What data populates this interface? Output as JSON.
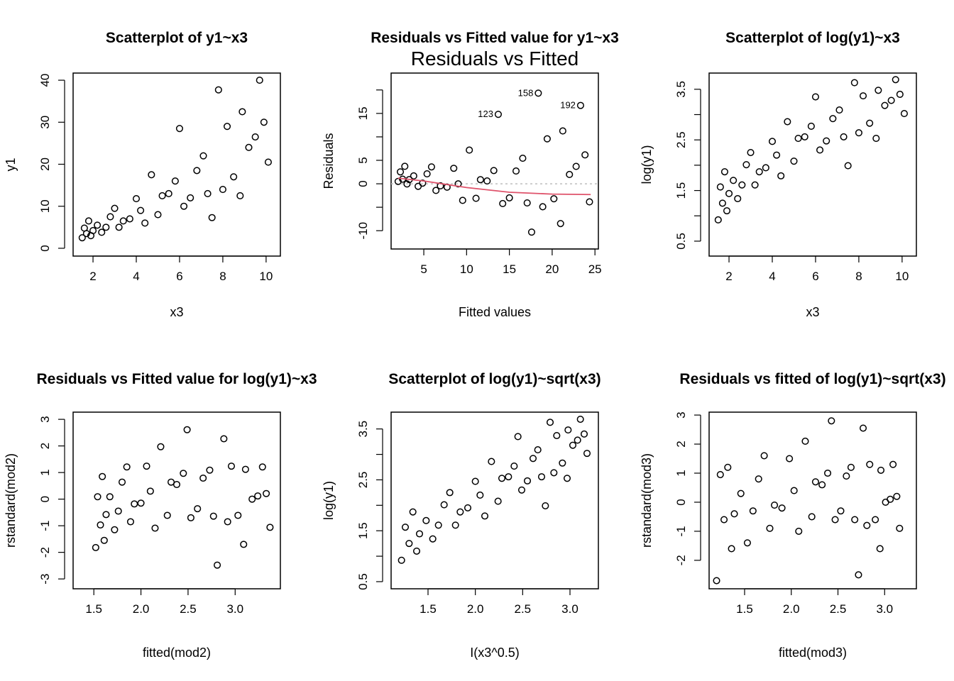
{
  "chart_data": [
    {
      "type": "scatter",
      "title": "Scatterplot of y1~x3",
      "xlabel": "x3",
      "ylabel": "y1",
      "xlim": [
        1.08,
        10.66
      ],
      "ylim": [
        -1.86,
        41.7
      ],
      "xticks": [
        2,
        4,
        6,
        8,
        10
      ],
      "xtick_labels": [
        "2",
        "4",
        "6",
        "8",
        "10"
      ],
      "yticks": [
        0,
        10,
        20,
        30,
        40
      ],
      "ytick_labels": [
        "0",
        "10",
        "20",
        "30",
        "40"
      ],
      "x": [
        1.5,
        1.6,
        1.7,
        1.8,
        1.9,
        2.0,
        2.2,
        2.4,
        2.6,
        2.8,
        3.0,
        3.2,
        3.4,
        3.7,
        4.0,
        4.2,
        4.4,
        4.7,
        5.0,
        5.2,
        5.5,
        5.8,
        6.0,
        6.2,
        6.5,
        6.8,
        7.1,
        7.3,
        7.5,
        7.8,
        8.0,
        8.2,
        8.5,
        8.8,
        8.9,
        9.2,
        9.5,
        9.7,
        9.9,
        10.1
      ],
      "y": [
        2.5,
        4.8,
        3.5,
        6.5,
        3.0,
        4.2,
        5.5,
        3.8,
        5.0,
        7.5,
        9.5,
        5.0,
        6.5,
        7.0,
        11.8,
        9.0,
        6.0,
        17.5,
        8.0,
        12.5,
        13.0,
        16.0,
        28.5,
        10.0,
        12.0,
        18.5,
        22.0,
        13.0,
        7.3,
        37.7,
        14.0,
        29.0,
        17.0,
        12.5,
        32.5,
        24.0,
        26.5,
        40.0,
        30.0,
        20.5
      ],
      "grid": false
    },
    {
      "type": "scatter",
      "title": "Residuals vs Fitted value for y1~x3",
      "subtitle": "Residuals vs Fitted",
      "xlabel": "Fitted values",
      "ylabel": "Residuals",
      "xlim": [
        1.18,
        25.4
      ],
      "ylim": [
        -13.9,
        23.6
      ],
      "xticks": [
        5,
        10,
        15,
        20,
        25
      ],
      "xtick_labels": [
        "5",
        "10",
        "15",
        "20",
        "25"
      ],
      "yticks": [
        -10,
        -5,
        0,
        5,
        10,
        15,
        20
      ],
      "ytick_labels": [
        "-10",
        "",
        "0",
        "5",
        "",
        "15",
        ""
      ],
      "x": [
        2.0,
        2.26,
        2.52,
        2.78,
        3.04,
        3.3,
        3.82,
        4.34,
        4.86,
        5.38,
        5.9,
        6.42,
        6.94,
        7.72,
        8.5,
        9.02,
        9.54,
        10.32,
        11.1,
        11.62,
        12.4,
        13.18,
        13.7,
        14.22,
        15.0,
        15.78,
        16.56,
        17.08,
        17.6,
        18.38,
        18.9,
        19.42,
        20.2,
        20.98,
        21.24,
        22.02,
        22.8,
        23.32,
        23.84,
        24.36
      ],
      "y": [
        0.5,
        2.54,
        0.98,
        3.72,
        -0.04,
        0.9,
        1.68,
        -0.54,
        0.14,
        2.12,
        3.6,
        -1.42,
        -0.44,
        -0.72,
        3.3,
        -0.02,
        -3.54,
        7.18,
        -3.1,
        0.88,
        0.6,
        2.82,
        14.8,
        -4.22,
        -3.0,
        2.72,
        5.44,
        -4.08,
        -10.3,
        19.32,
        -4.9,
        9.58,
        -3.2,
        -8.48,
        11.26,
        1.98,
        3.7,
        16.7,
        6.16,
        -3.86
      ],
      "point_labels": [
        {
          "index": 22,
          "text": "123"
        },
        {
          "index": 29,
          "text": "158"
        },
        {
          "index": 37,
          "text": "192"
        }
      ],
      "reference_line": {
        "y": 0,
        "color": "#bebebe",
        "style": "dashed"
      },
      "smooth_line": {
        "color": "#df536b",
        "x": [
          2,
          5,
          10,
          15,
          20,
          24.5
        ],
        "y": [
          1.2,
          0.6,
          -0.8,
          -1.8,
          -2.2,
          -2.3
        ]
      }
    },
    {
      "type": "scatter",
      "title": "Scatterplot of log(y1)~x3",
      "xlabel": "x3",
      "ylabel": "log(y1)",
      "xlim": [
        1.08,
        10.66
      ],
      "ylim": [
        0.205,
        3.82
      ],
      "xticks": [
        2,
        4,
        6,
        8,
        10
      ],
      "xtick_labels": [
        "2",
        "4",
        "6",
        "8",
        "10"
      ],
      "yticks": [
        0.5,
        1.0,
        1.5,
        2.0,
        2.5,
        3.0,
        3.5
      ],
      "ytick_labels": [
        "0.5",
        "",
        "1.5",
        "",
        "2.5",
        "",
        "3.5"
      ],
      "x": [
        1.5,
        1.6,
        1.7,
        1.8,
        1.9,
        2.0,
        2.2,
        2.4,
        2.6,
        2.8,
        3.0,
        3.2,
        3.4,
        3.7,
        4.0,
        4.2,
        4.4,
        4.7,
        5.0,
        5.2,
        5.5,
        5.8,
        6.0,
        6.2,
        6.5,
        6.8,
        7.1,
        7.3,
        7.5,
        7.8,
        8.0,
        8.2,
        8.5,
        8.8,
        8.9,
        9.2,
        9.5,
        9.7,
        9.9,
        10.1
      ],
      "y": [
        0.92,
        1.57,
        1.25,
        1.87,
        1.1,
        1.44,
        1.7,
        1.34,
        1.61,
        2.01,
        2.25,
        1.61,
        1.87,
        1.95,
        2.47,
        2.2,
        1.79,
        2.86,
        2.08,
        2.53,
        2.56,
        2.77,
        3.35,
        2.3,
        2.48,
        2.92,
        3.09,
        2.56,
        1.99,
        3.63,
        2.64,
        3.37,
        2.83,
        2.53,
        3.48,
        3.18,
        3.28,
        3.69,
        3.4,
        3.02
      ]
    },
    {
      "type": "scatter",
      "title": "Residuals vs Fitted value for log(y1)~x3",
      "xlabel": "fitted(mod2)",
      "ylabel": "rstandard(mod2)",
      "xlim": [
        1.28,
        3.48
      ],
      "ylim": [
        -3.37,
        3.27
      ],
      "xticks": [
        1.5,
        2.0,
        2.5,
        3.0
      ],
      "xtick_labels": [
        "1.5",
        "2.0",
        "2.5",
        "3.0"
      ],
      "yticks": [
        -3,
        -2,
        -1,
        0,
        1,
        2,
        3
      ],
      "ytick_labels": [
        "-3",
        "-2",
        "-1",
        "0",
        "1",
        "2",
        "3"
      ],
      "x": [
        1.52,
        1.54,
        1.57,
        1.59,
        1.61,
        1.63,
        1.67,
        1.72,
        1.76,
        1.8,
        1.85,
        1.89,
        1.93,
        2.0,
        2.06,
        2.1,
        2.15,
        2.21,
        2.28,
        2.32,
        2.38,
        2.45,
        2.49,
        2.53,
        2.6,
        2.66,
        2.73,
        2.77,
        2.81,
        2.88,
        2.92,
        2.96,
        3.03,
        3.09,
        3.11,
        3.18,
        3.24,
        3.29,
        3.33,
        3.37
      ],
      "y": [
        -1.82,
        0.09,
        -0.97,
        0.85,
        -1.55,
        -0.58,
        0.09,
        -1.15,
        -0.45,
        0.64,
        1.21,
        -0.85,
        -0.18,
        -0.15,
        1.24,
        0.3,
        -1.09,
        1.97,
        -0.61,
        0.64,
        0.55,
        0.97,
        2.61,
        -0.7,
        -0.36,
        0.79,
        1.09,
        -0.64,
        -2.48,
        2.27,
        -0.85,
        1.24,
        -0.61,
        -1.7,
        1.12,
        0.0,
        0.12,
        1.21,
        0.21,
        -1.06
      ]
    },
    {
      "type": "scatter",
      "title": "Scatterplot of log(y1)~sqrt(x3)",
      "xlabel": "I(x3^0.5)",
      "ylabel": "log(y1)",
      "xlim": [
        1.11,
        3.3
      ],
      "ylim": [
        0.36,
        3.83
      ],
      "xticks": [
        1.5,
        2.0,
        2.5,
        3.0
      ],
      "xtick_labels": [
        "1.5",
        "2.0",
        "2.5",
        "3.0"
      ],
      "yticks": [
        0.5,
        1.0,
        1.5,
        2.0,
        2.5,
        3.0,
        3.5
      ],
      "ytick_labels": [
        "0.5",
        "",
        "1.5",
        "",
        "2.5",
        "",
        "3.5"
      ],
      "x": [
        1.22,
        1.26,
        1.3,
        1.34,
        1.38,
        1.41,
        1.48,
        1.55,
        1.61,
        1.67,
        1.73,
        1.79,
        1.84,
        1.92,
        2.0,
        2.05,
        2.1,
        2.17,
        2.24,
        2.28,
        2.35,
        2.41,
        2.45,
        2.49,
        2.55,
        2.61,
        2.66,
        2.7,
        2.74,
        2.79,
        2.83,
        2.86,
        2.92,
        2.97,
        2.98,
        3.03,
        3.08,
        3.11,
        3.15,
        3.18
      ],
      "y": [
        0.92,
        1.57,
        1.25,
        1.87,
        1.1,
        1.44,
        1.7,
        1.34,
        1.61,
        2.01,
        2.25,
        1.61,
        1.87,
        1.95,
        2.47,
        2.2,
        1.79,
        2.86,
        2.08,
        2.53,
        2.56,
        2.77,
        3.35,
        2.3,
        2.48,
        2.92,
        3.09,
        2.56,
        1.99,
        3.63,
        2.64,
        3.37,
        2.83,
        2.53,
        3.48,
        3.18,
        3.28,
        3.69,
        3.4,
        3.02
      ]
    },
    {
      "type": "scatter",
      "title": "Residuals vs fitted of log(y1)~sqrt(x3)",
      "xlabel": "fitted(mod3)",
      "ylabel": "rstandard(mod3)",
      "xlim": [
        1.12,
        3.34
      ],
      "ylim": [
        -2.98,
        3.1
      ],
      "xticks": [
        1.5,
        2.0,
        2.5,
        3.0
      ],
      "xtick_labels": [
        "1.5",
        "2.0",
        "2.5",
        "3.0"
      ],
      "yticks": [
        -2,
        -1,
        0,
        1,
        2,
        3
      ],
      "ytick_labels": [
        "-2",
        "-1",
        "0",
        "1",
        "2",
        "3"
      ],
      "x": [
        1.2,
        1.24,
        1.28,
        1.32,
        1.36,
        1.39,
        1.46,
        1.53,
        1.59,
        1.65,
        1.71,
        1.77,
        1.82,
        1.9,
        1.98,
        2.03,
        2.08,
        2.15,
        2.22,
        2.26,
        2.33,
        2.39,
        2.43,
        2.47,
        2.53,
        2.59,
        2.64,
        2.68,
        2.72,
        2.77,
        2.81,
        2.84,
        2.9,
        2.95,
        2.96,
        3.01,
        3.06,
        3.09,
        3.13,
        3.16
      ],
      "y": [
        -2.7,
        0.95,
        -0.6,
        1.2,
        -1.6,
        -0.4,
        0.3,
        -1.4,
        -0.3,
        0.8,
        1.6,
        -0.9,
        -0.1,
        -0.2,
        1.5,
        0.4,
        -1.0,
        2.1,
        -0.5,
        0.7,
        0.6,
        1.0,
        2.8,
        -0.6,
        -0.3,
        0.9,
        1.2,
        -0.6,
        -2.5,
        2.55,
        -0.8,
        1.3,
        -0.6,
        -1.6,
        1.1,
        0.0,
        0.1,
        1.3,
        0.2,
        -0.9
      ]
    }
  ]
}
